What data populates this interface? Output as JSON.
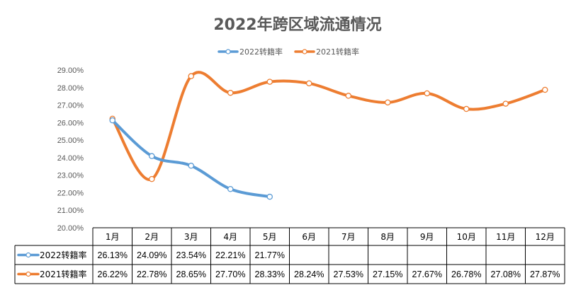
{
  "chart_data": {
    "type": "line",
    "title": "2022年跨区域流通情况",
    "categories": [
      "1月",
      "2月",
      "3月",
      "4月",
      "5月",
      "6月",
      "7月",
      "8月",
      "9月",
      "10月",
      "11月",
      "12月"
    ],
    "series": [
      {
        "name": "2022转籍率",
        "color": "#5B9BD5",
        "values": [
          26.13,
          24.09,
          23.54,
          22.21,
          21.77,
          null,
          null,
          null,
          null,
          null,
          null,
          null
        ],
        "labels": [
          "26.13%",
          "24.09%",
          "23.54%",
          "22.21%",
          "21.77%",
          "",
          "",
          "",
          "",
          "",
          "",
          ""
        ]
      },
      {
        "name": "2021转籍率",
        "color": "#ED7D31",
        "values": [
          26.22,
          22.78,
          28.65,
          27.7,
          28.33,
          28.24,
          27.53,
          27.15,
          27.67,
          26.78,
          27.08,
          27.87
        ],
        "labels": [
          "26.22%",
          "22.78%",
          "28.65%",
          "27.70%",
          "28.33%",
          "28.24%",
          "27.53%",
          "27.15%",
          "27.67%",
          "26.78%",
          "27.08%",
          "27.87%"
        ]
      }
    ],
    "ylim": [
      20,
      29
    ],
    "yticks": [
      "20.00%",
      "21.00%",
      "22.00%",
      "23.00%",
      "24.00%",
      "25.00%",
      "26.00%",
      "27.00%",
      "28.00%",
      "29.00%"
    ],
    "legend_position": "top-center",
    "data_table": true,
    "smooth": true
  }
}
